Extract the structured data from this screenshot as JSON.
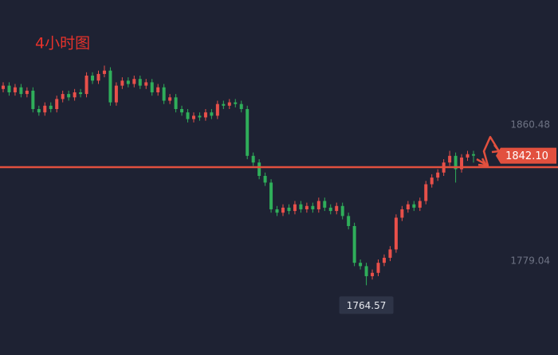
{
  "chart_data": {
    "type": "candlestick",
    "title": "4小时图",
    "up_color": "#e8504a",
    "down_color": "#2fae5a",
    "open": [
      1882,
      1884,
      1880,
      1883,
      1879,
      1881,
      1870,
      1868,
      1872,
      1870,
      1876,
      1879,
      1877,
      1880,
      1879,
      1890,
      1887,
      1891,
      1893,
      1874,
      1884,
      1887,
      1885,
      1888,
      1884,
      1886,
      1880,
      1883,
      1875,
      1877,
      1870,
      1868,
      1864,
      1866,
      1865,
      1868,
      1866,
      1873,
      1872,
      1874,
      1873,
      1870,
      1842,
      1838,
      1830,
      1826,
      1810,
      1808,
      1811,
      1809,
      1813,
      1810,
      1812,
      1810,
      1815,
      1811,
      1809,
      1812,
      1806,
      1800,
      1778,
      1776,
      1770,
      1772,
      1778,
      1781,
      1786,
      1805,
      1810,
      1813,
      1811,
      1815,
      1825,
      1829,
      1832,
      1838,
      1842,
      1834,
      1841,
      1843
    ],
    "high": [
      1886,
      1886,
      1885,
      1885,
      1883,
      1883,
      1872,
      1874,
      1874,
      1878,
      1881,
      1881,
      1882,
      1882,
      1892,
      1892,
      1893,
      1896,
      1895,
      1886,
      1889,
      1889,
      1890,
      1890,
      1888,
      1888,
      1885,
      1885,
      1879,
      1879,
      1872,
      1870,
      1868,
      1868,
      1870,
      1870,
      1875,
      1875,
      1876,
      1876,
      1875,
      1872,
      1844,
      1840,
      1832,
      1828,
      1812,
      1813,
      1813,
      1815,
      1815,
      1814,
      1814,
      1817,
      1817,
      1813,
      1814,
      1814,
      1808,
      1802,
      1780,
      1778,
      1774,
      1780,
      1783,
      1788,
      1807,
      1812,
      1815,
      1815,
      1817,
      1827,
      1831,
      1834,
      1840,
      1845,
      1844,
      1843,
      1845,
      1845
    ],
    "low": [
      1880,
      1878,
      1878,
      1877,
      1877,
      1868,
      1866,
      1866,
      1868,
      1868,
      1874,
      1875,
      1875,
      1877,
      1877,
      1885,
      1885,
      1889,
      1872,
      1872,
      1882,
      1883,
      1883,
      1882,
      1882,
      1878,
      1878,
      1873,
      1873,
      1868,
      1866,
      1862,
      1862,
      1863,
      1863,
      1864,
      1864,
      1870,
      1870,
      1871,
      1868,
      1840,
      1836,
      1828,
      1824,
      1808,
      1806,
      1806,
      1807,
      1807,
      1808,
      1808,
      1808,
      1808,
      1809,
      1807,
      1807,
      1804,
      1798,
      1776,
      1774,
      1764.57,
      1768,
      1770,
      1776,
      1779,
      1784,
      1803,
      1808,
      1809,
      1809,
      1813,
      1823,
      1827,
      1830,
      1836,
      1826,
      1832,
      1839,
      1838
    ],
    "close": [
      1884,
      1880,
      1883,
      1879,
      1881,
      1870,
      1868,
      1872,
      1870,
      1876,
      1879,
      1877,
      1880,
      1879,
      1890,
      1887,
      1891,
      1893,
      1874,
      1884,
      1887,
      1885,
      1888,
      1884,
      1886,
      1880,
      1883,
      1875,
      1877,
      1870,
      1868,
      1864,
      1866,
      1865,
      1868,
      1866,
      1873,
      1872,
      1874,
      1873,
      1870,
      1842,
      1838,
      1830,
      1826,
      1810,
      1808,
      1811,
      1809,
      1813,
      1810,
      1812,
      1810,
      1815,
      1811,
      1809,
      1812,
      1806,
      1800,
      1778,
      1776,
      1770,
      1772,
      1778,
      1781,
      1786,
      1805,
      1810,
      1813,
      1811,
      1815,
      1825,
      1829,
      1832,
      1838,
      1842,
      1834,
      1841,
      1843,
      1842.1
    ],
    "ylim": [
      1722.84,
      1935.25
    ],
    "yticks": [
      1860.48,
      1779.04
    ],
    "last_price": {
      "value": 1842.1,
      "label": "1842.10"
    },
    "low_price": 1764.57,
    "support_line": 1835.24,
    "support_color": "#e2503e"
  }
}
